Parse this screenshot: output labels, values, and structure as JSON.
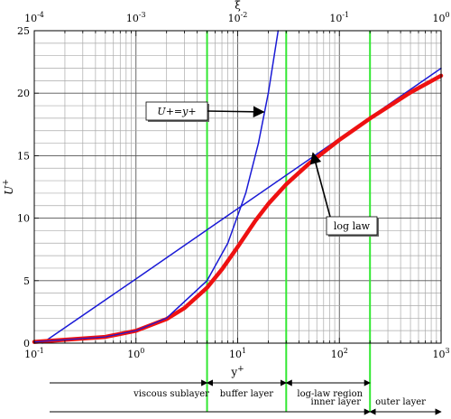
{
  "chart_data": {
    "type": "line",
    "xscale": "log",
    "xlim": [
      0.1,
      1000
    ],
    "ylim": [
      0,
      25
    ],
    "grid": true,
    "xlabel": "y",
    "xlabel_sup": "+",
    "ylabel": "U",
    "ylabel_sup": "+",
    "top_axis": {
      "label": "ξ",
      "scale": "log",
      "range": [
        0.0001,
        1
      ],
      "ticks": [
        {
          "value": 0.0001,
          "base": "10",
          "exp": "-4"
        },
        {
          "value": 0.001,
          "base": "10",
          "exp": "-3"
        },
        {
          "value": 0.01,
          "base": "10",
          "exp": "-2"
        },
        {
          "value": 0.1,
          "base": "10",
          "exp": "-1"
        },
        {
          "value": 1,
          "base": "10",
          "exp": "0"
        }
      ]
    },
    "x_ticks": [
      {
        "value": 0.1,
        "base": "10",
        "exp": "-1"
      },
      {
        "value": 1,
        "base": "10",
        "exp": "0"
      },
      {
        "value": 10,
        "base": "10",
        "exp": "1"
      },
      {
        "value": 100,
        "base": "10",
        "exp": "2"
      },
      {
        "value": 1000,
        "base": "10",
        "exp": "3"
      }
    ],
    "y_ticks": [
      0,
      5,
      10,
      15,
      20,
      25
    ],
    "series": [
      {
        "name": "U+=y+",
        "color": "#1a1ad6",
        "x": [
          0.1,
          0.5,
          1,
          2,
          5,
          8,
          12,
          16,
          20,
          25
        ],
        "y": [
          0.1,
          0.5,
          1,
          2,
          5,
          8,
          12,
          16,
          20,
          25
        ]
      },
      {
        "name": "log law",
        "color": "#1a1ad6",
        "x": [
          0.12,
          1,
          10,
          100,
          1000
        ],
        "y": [
          0.0,
          5.14,
          10.76,
          16.37,
          21.99
        ]
      },
      {
        "color": "#ee1111",
        "x": [
          0.1,
          0.5,
          1,
          2,
          3,
          5,
          7,
          10,
          15,
          20,
          30,
          50,
          100,
          200,
          500,
          1000
        ],
        "y": [
          0.1,
          0.5,
          0.99,
          1.93,
          2.81,
          4.44,
          5.9,
          7.7,
          9.82,
          11.14,
          12.71,
          14.35,
          16.26,
          17.98,
          20.06,
          21.4
        ]
      }
    ],
    "annotations": [
      {
        "text": "U+=y+",
        "math": [
          "U",
          "+=",
          "y",
          "+"
        ],
        "target": [
          18,
          18.5
        ]
      },
      {
        "text": "log law",
        "target": [
          55,
          15.2
        ]
      }
    ],
    "boundaries": [
      {
        "x": 5,
        "color": "#33e833"
      },
      {
        "x": 30,
        "color": "#33e833"
      },
      {
        "x": 200,
        "color": "#33e833"
      }
    ],
    "regions": [
      {
        "label": "viscous sublayer",
        "from": 0.12,
        "to": 5,
        "row": 1
      },
      {
        "label": "buffer layer",
        "from": 5,
        "to": 30,
        "row": 1
      },
      {
        "label": "log-law region",
        "from": 30,
        "to": 200,
        "row": 1
      },
      {
        "label": "outer layer",
        "from": 200,
        "to": 1000,
        "row": 2
      },
      {
        "label": "inner layer",
        "from": 0.12,
        "to": 200,
        "row": 2
      }
    ]
  }
}
